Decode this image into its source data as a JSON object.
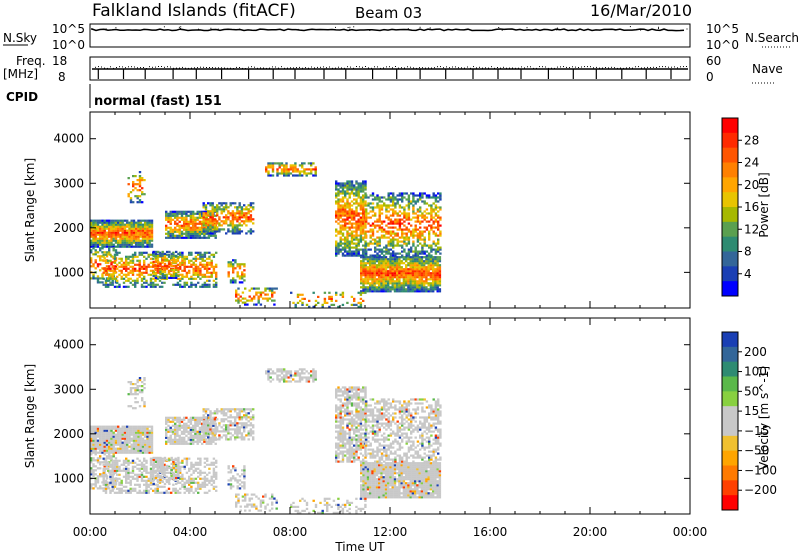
{
  "header": {
    "station": "Falkland Islands (fitACF)",
    "beam": "Beam 03",
    "date": "16/Mar/2010"
  },
  "top_panels": {
    "nsky_label": "N.Sky",
    "nsky_ticks": [
      "10^5",
      "10^0"
    ],
    "nsearch_label": "N.Search",
    "nsearch_ticks": [
      "10^5",
      "10^0"
    ],
    "freq_label": "Freq.",
    "freq_unit": "[MHz]",
    "freq_ticks": [
      "18",
      "8"
    ],
    "nave_label": "Nave",
    "nave_ticks": [
      "60",
      "0"
    ],
    "cpid_label": "CPID",
    "cpid_value": "normal (fast) 151"
  },
  "chart_data": [
    {
      "type": "heatmap",
      "title": "",
      "ylabel": "Slant Range [km]",
      "xlabel": "",
      "x_ticks": [
        "00:00",
        "04:00",
        "08:00",
        "12:00",
        "16:00",
        "20:00",
        "00:00"
      ],
      "y_ticks": [
        1000,
        2000,
        3000,
        4000
      ],
      "ylim": [
        200,
        4600
      ],
      "colorbar": {
        "label": "Power [dB]",
        "ticks": [
          "28",
          "24",
          "20",
          "16",
          "12",
          "8",
          "4"
        ],
        "colors": [
          "#ff0000",
          "#ff2a00",
          "#ff5500",
          "#ff8000",
          "#ffa500",
          "#e8c400",
          "#a6b800",
          "#5aa050",
          "#2e8b72",
          "#336699",
          "#1a3fb4",
          "#0000ff"
        ]
      }
    },
    {
      "type": "heatmap",
      "title": "",
      "ylabel": "Slant Range [km]",
      "xlabel": "Time UT",
      "x_ticks": [
        "00:00",
        "04:00",
        "08:00",
        "12:00",
        "16:00",
        "20:00",
        "00:00"
      ],
      "y_ticks": [
        1000,
        2000,
        3000,
        4000
      ],
      "ylim": [
        200,
        4600
      ],
      "colorbar": {
        "label": "Velocity [m s^-1]",
        "ticks": [
          "200",
          "100",
          "50",
          "15",
          "−15",
          "−50",
          "−100",
          "−200"
        ],
        "colors": [
          "#1a3fb4",
          "#336699",
          "#2e8b72",
          "#5ab84a",
          "#88d040",
          "#c8c8c8",
          "#c8c8c8",
          "#f0c030",
          "#ffa500",
          "#ff7a00",
          "#ff4000",
          "#ff0000"
        ]
      }
    }
  ]
}
